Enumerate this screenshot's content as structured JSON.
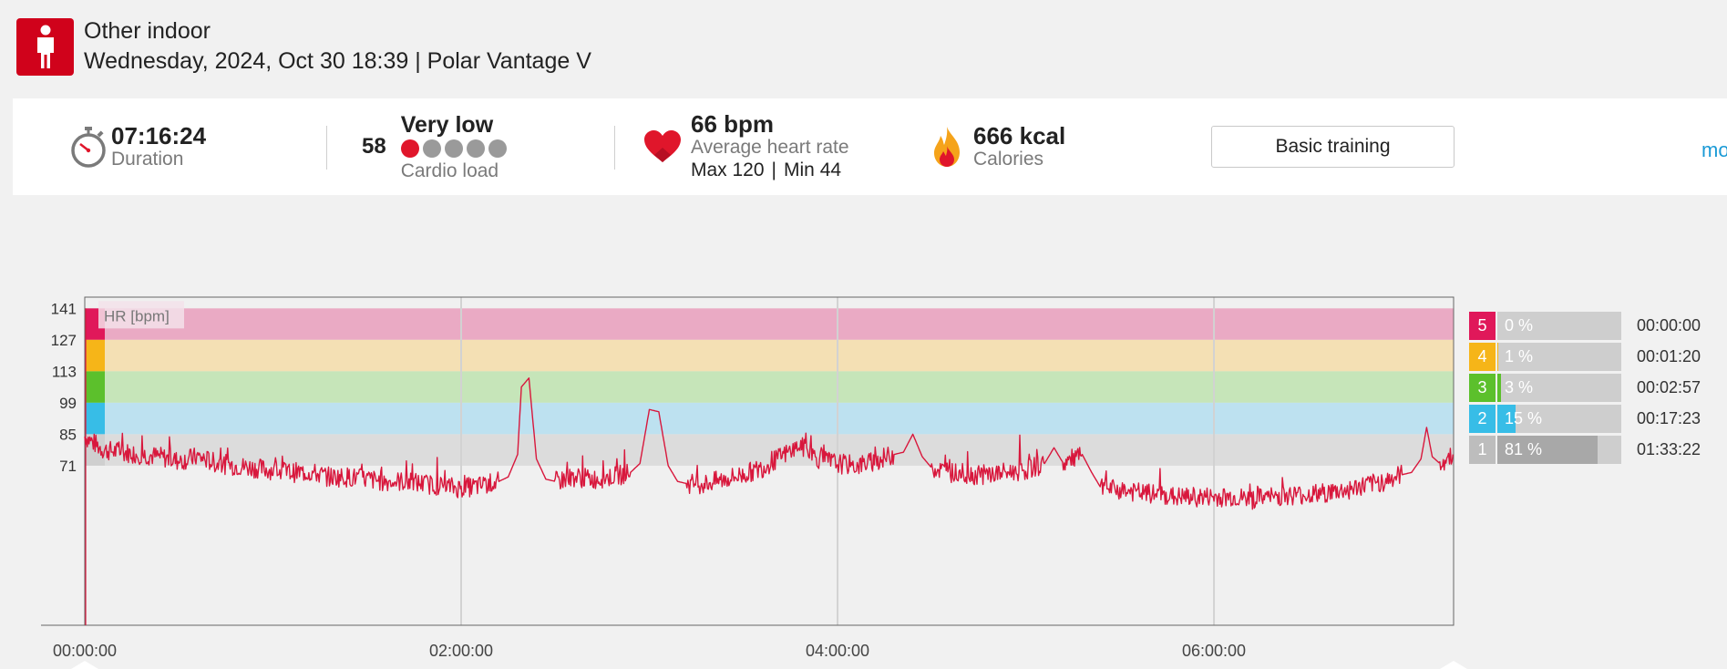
{
  "header": {
    "sport": "Other indoor",
    "date": "Wednesday, 2024, Oct 30 18:39",
    "separator": "|",
    "device": "Polar Vantage V"
  },
  "summary": {
    "duration": {
      "value": "07:16:24",
      "label": "Duration"
    },
    "cardio": {
      "score": "58",
      "level": "Very low",
      "label": "Cardio load",
      "active_dots": 1,
      "total_dots": 5
    },
    "heart": {
      "value": "66 bpm",
      "label": "Average heart rate",
      "max": "Max 120",
      "sep": "|",
      "min": "Min 44"
    },
    "calories": {
      "value": "666 kcal",
      "label": "Calories"
    },
    "training_button": "Basic training",
    "more_link": "mo"
  },
  "chart_data": {
    "type": "line",
    "title": "HR [bpm]",
    "series": [
      {
        "name": "HR [bpm]",
        "color": "#d8173c"
      }
    ],
    "x_ticks": [
      "00:00:00",
      "02:00:00",
      "04:00:00",
      "06:00:00"
    ],
    "x_tick_hours": [
      0,
      2,
      4,
      6
    ],
    "x_range_hours": [
      0,
      7.2733
    ],
    "y_ticks": [
      141,
      127,
      113,
      99,
      85,
      71
    ],
    "y_range": [
      0,
      146
    ],
    "grid": "vertical",
    "zone_bands": [
      {
        "zone": 5,
        "from": 127,
        "to": 141,
        "color": "#eaaac4"
      },
      {
        "zone": 4,
        "from": 113,
        "to": 127,
        "color": "#f4e0b4"
      },
      {
        "zone": 3,
        "from": 99,
        "to": 113,
        "color": "#c6e5b9"
      },
      {
        "zone": 2,
        "from": 85,
        "to": 99,
        "color": "#bde1f0"
      },
      {
        "zone": 1,
        "from": 71,
        "to": 85,
        "color": "#dcdcdc"
      }
    ],
    "hr_points": [
      [
        0.0,
        84
      ],
      [
        0.1,
        78
      ],
      [
        0.2,
        77
      ],
      [
        0.3,
        76
      ],
      [
        0.4,
        75
      ],
      [
        0.5,
        73
      ],
      [
        0.6,
        75
      ],
      [
        0.7,
        72
      ],
      [
        0.8,
        71
      ],
      [
        0.9,
        70
      ],
      [
        1.0,
        69
      ],
      [
        1.1,
        68
      ],
      [
        1.2,
        68
      ],
      [
        1.3,
        66
      ],
      [
        1.4,
        66
      ],
      [
        1.5,
        65
      ],
      [
        1.6,
        64
      ],
      [
        1.7,
        64
      ],
      [
        1.8,
        63
      ],
      [
        1.9,
        62
      ],
      [
        2.0,
        61
      ],
      [
        2.1,
        62
      ],
      [
        2.2,
        64
      ],
      [
        2.25,
        66
      ],
      [
        2.3,
        76
      ],
      [
        2.32,
        106
      ],
      [
        2.36,
        110
      ],
      [
        2.4,
        74
      ],
      [
        2.45,
        65
      ],
      [
        2.5,
        64
      ],
      [
        2.6,
        66
      ],
      [
        2.7,
        65
      ],
      [
        2.8,
        66
      ],
      [
        2.9,
        68
      ],
      [
        2.95,
        72
      ],
      [
        3.0,
        96
      ],
      [
        3.05,
        95
      ],
      [
        3.1,
        71
      ],
      [
        3.15,
        64
      ],
      [
        3.2,
        63
      ],
      [
        3.3,
        63
      ],
      [
        3.4,
        65
      ],
      [
        3.5,
        67
      ],
      [
        3.6,
        70
      ],
      [
        3.7,
        75
      ],
      [
        3.8,
        80
      ],
      [
        3.9,
        74
      ],
      [
        4.0,
        72
      ],
      [
        4.1,
        71
      ],
      [
        4.2,
        73
      ],
      [
        4.3,
        76
      ],
      [
        4.35,
        77
      ],
      [
        4.4,
        85
      ],
      [
        4.45,
        75
      ],
      [
        4.5,
        70
      ],
      [
        4.6,
        68
      ],
      [
        4.7,
        67
      ],
      [
        4.8,
        67
      ],
      [
        4.9,
        68
      ],
      [
        5.0,
        69
      ],
      [
        5.1,
        72
      ],
      [
        5.15,
        79
      ],
      [
        5.2,
        72
      ],
      [
        5.3,
        76
      ],
      [
        5.35,
        68
      ],
      [
        5.4,
        61
      ],
      [
        5.5,
        60
      ],
      [
        5.6,
        59
      ],
      [
        5.7,
        58
      ],
      [
        5.8,
        57
      ],
      [
        5.9,
        57
      ],
      [
        6.0,
        57
      ],
      [
        6.1,
        57
      ],
      [
        6.2,
        56
      ],
      [
        6.3,
        57
      ],
      [
        6.4,
        58
      ],
      [
        6.5,
        58
      ],
      [
        6.6,
        59
      ],
      [
        6.7,
        60
      ],
      [
        6.8,
        62
      ],
      [
        6.9,
        64
      ],
      [
        7.0,
        67
      ],
      [
        7.05,
        68
      ],
      [
        7.1,
        74
      ],
      [
        7.13,
        88
      ],
      [
        7.16,
        75
      ],
      [
        7.2,
        72
      ],
      [
        7.27,
        76
      ]
    ],
    "zones": [
      {
        "zone": "5",
        "percent": "0 %",
        "fraction": 0.0,
        "time": "00:00:00",
        "color": "#e0185a"
      },
      {
        "zone": "4",
        "percent": "1 %",
        "fraction": 0.01,
        "time": "00:01:20",
        "color": "#f6b518"
      },
      {
        "zone": "3",
        "percent": "3 %",
        "fraction": 0.03,
        "time": "00:02:57",
        "color": "#5cc02c"
      },
      {
        "zone": "2",
        "percent": "15 %",
        "fraction": 0.15,
        "time": "00:17:23",
        "color": "#37bde7"
      },
      {
        "zone": "1",
        "percent": "81 %",
        "fraction": 0.81,
        "time": "01:33:22",
        "color": "#bdbdbd"
      }
    ]
  }
}
